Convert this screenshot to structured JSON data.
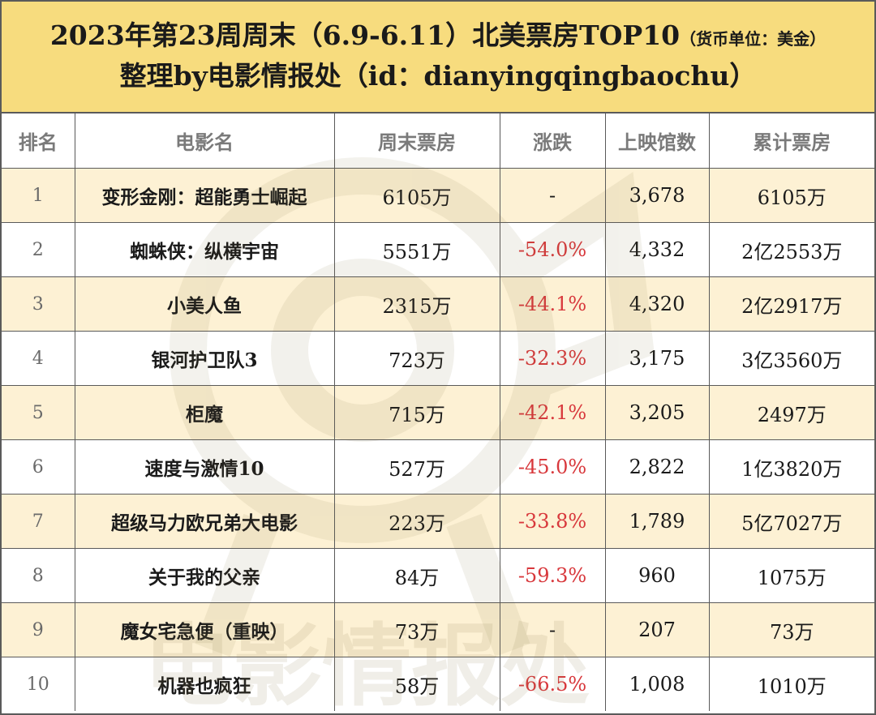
{
  "header": {
    "title_main": "2023年第23周周末（6.9-6.11）北美票房TOP10",
    "title_unit": "（货币单位：美金）",
    "subtitle": "整理by电影情报处（id：dianyingqingbaochu）"
  },
  "columns": [
    "排名",
    "电影名",
    "周末票房",
    "涨跌",
    "上映馆数",
    "累计票房"
  ],
  "rows": [
    {
      "rank": "1",
      "name": "变形金刚：超能勇士崛起",
      "weekend": "6105万",
      "change": "-",
      "theaters": "3,678",
      "total": "6105万"
    },
    {
      "rank": "2",
      "name": "蜘蛛侠：纵横宇宙",
      "weekend": "5551万",
      "change": "-54.0%",
      "theaters": "4,332",
      "total": "2亿2553万"
    },
    {
      "rank": "3",
      "name": "小美人鱼",
      "weekend": "2315万",
      "change": "-44.1%",
      "theaters": "4,320",
      "total": "2亿2917万"
    },
    {
      "rank": "4",
      "name": "银河护卫队3",
      "weekend": "723万",
      "change": "-32.3%",
      "theaters": "3,175",
      "total": "3亿3560万"
    },
    {
      "rank": "5",
      "name": "柜魔",
      "weekend": "715万",
      "change": "-42.1%",
      "theaters": "3,205",
      "total": "2497万"
    },
    {
      "rank": "6",
      "name": "速度与激情10",
      "weekend": "527万",
      "change": "-45.0%",
      "theaters": "2,822",
      "total": "1亿3820万"
    },
    {
      "rank": "7",
      "name": "超级马力欧兄弟大电影",
      "weekend": "223万",
      "change": "-33.8%",
      "theaters": "1,789",
      "total": "5亿7027万"
    },
    {
      "rank": "8",
      "name": "关于我的父亲",
      "weekend": "84万",
      "change": "-59.3%",
      "theaters": "960",
      "total": "1075万"
    },
    {
      "rank": "9",
      "name": "魔女宅急便（重映）",
      "weekend": "73万",
      "change": "-",
      "theaters": "207",
      "total": "73万"
    },
    {
      "rank": "10",
      "name": "机器也疯狂",
      "weekend": "58万",
      "change": "-66.5%",
      "theaters": "1,008",
      "total": "1010万"
    }
  ],
  "watermark": {
    "text": "电影情报处",
    "icon": "film-camera-logo-watermark"
  },
  "colors": {
    "header_bg": "#f7dc7e",
    "odd_row_bg": "#fcecc4",
    "even_row_bg": "#ffffff",
    "negative_change": "#d8383c",
    "header_text": "#7a7a7a",
    "border": "#5a5a5a"
  }
}
